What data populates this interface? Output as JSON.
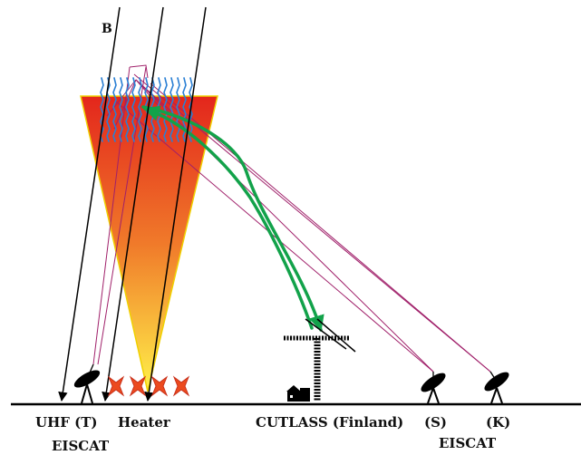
{
  "field_label": "B",
  "site_labels": {
    "uhf": "UHF (T)",
    "heater": "Heater",
    "cutlass": "CUTLASS (Finland)",
    "s": "(S)",
    "k": "(K)"
  },
  "group_labels": {
    "eiscat_left": "EISCAT",
    "eiscat_right": "EISCAT"
  },
  "colors": {
    "cone_top": "#e3261c",
    "cone_mid": "#f07a2a",
    "cone_bottom": "#fff14a",
    "cone_edge": "#f0d000",
    "striations": "#2a7fd4",
    "eiscat_beams": "#a0206a",
    "radar_path": "#12a24a",
    "field_lines": "#000000",
    "heater_array": "#ec4a1e",
    "ground": "#000000"
  },
  "icons": [
    "dish-antenna-icon",
    "heater-array-icon",
    "radar-antenna-icon",
    "building-icon",
    "arrow-icon"
  ]
}
